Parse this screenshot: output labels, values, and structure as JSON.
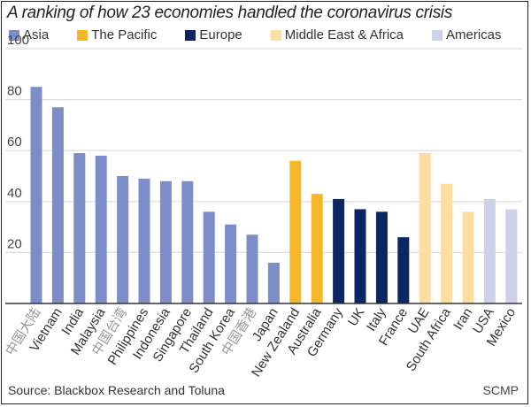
{
  "chart_data": {
    "type": "bar",
    "title": "A ranking of how 23 economies handled the coronavirus crisis",
    "xlabel": "",
    "ylabel": "",
    "ylim": [
      0,
      100
    ],
    "yticks": [
      20,
      40,
      60,
      80,
      100
    ],
    "grid": true,
    "legend_placement": "top",
    "legend": [
      {
        "name": "Asia",
        "color": "#7d8dc9"
      },
      {
        "name": "The Pacific",
        "color": "#f6b82a"
      },
      {
        "name": "Europe",
        "color": "#0c2663"
      },
      {
        "name": "Middle East & Africa",
        "color": "#fbdea0"
      },
      {
        "name": "Americas",
        "color": "#cfd1ea"
      }
    ],
    "categories": [
      "中国大陆",
      "Vietnam",
      "India",
      "Malaysia",
      "中国台湾",
      "Philippines",
      "Indonesia",
      "Singapore",
      "Thailand",
      "South Korea",
      "中国香港",
      "Japan",
      "New Zealand",
      "Australia",
      "Germany",
      "UK",
      "Italy",
      "France",
      "UAE",
      "South Africa",
      "Iran",
      "USA",
      "Mexico"
    ],
    "groups": [
      "Asia",
      "Asia",
      "Asia",
      "Asia",
      "Asia",
      "Asia",
      "Asia",
      "Asia",
      "Asia",
      "Asia",
      "Asia",
      "Asia",
      "The Pacific",
      "The Pacific",
      "Europe",
      "Europe",
      "Europe",
      "Europe",
      "Middle East & Africa",
      "Middle East & Africa",
      "Middle East & Africa",
      "Americas",
      "Americas"
    ],
    "values": [
      85,
      77,
      59,
      58,
      50,
      49,
      48,
      48,
      36,
      31,
      27,
      16,
      56,
      43,
      41,
      37,
      36,
      26,
      59,
      47,
      36,
      41,
      37
    ]
  },
  "source": "Source: Blackbox Research and Toluna",
  "brand": "SCMP"
}
